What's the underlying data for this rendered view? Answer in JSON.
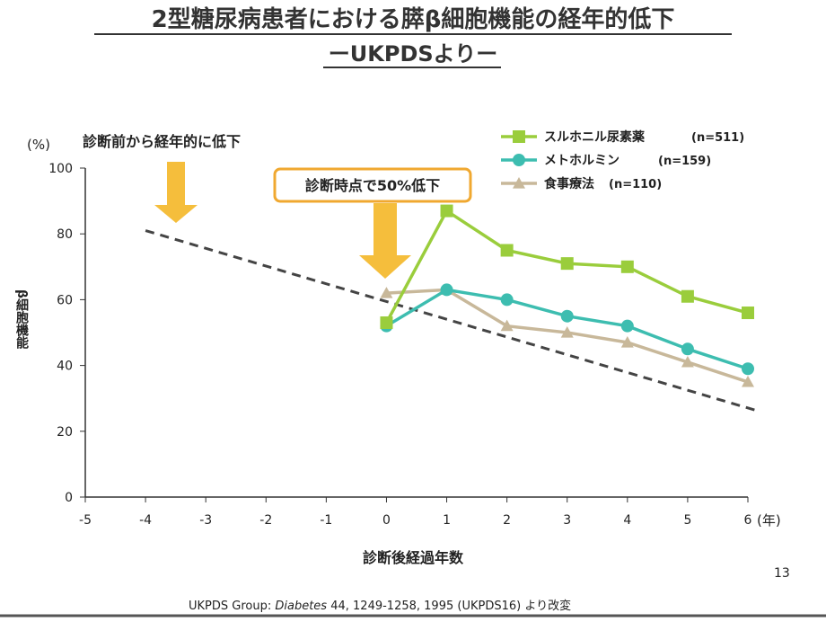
{
  "slide_number": "13",
  "footer": {
    "prefix": "UKPDS Group: ",
    "journal": "Diabetes",
    "suffix": " 44, 1249-1258, 1995 (UKPDS16) より改変"
  },
  "annotations": {
    "pre_diagnosis": "診断前から経年的に低下",
    "at_diagnosis": "診断時点で50%低下"
  },
  "colors": {
    "sulfonylurea": "#9acd3c",
    "metformin": "#3dbdb0",
    "diet": "#c8b89a",
    "dashed": "#444444",
    "arrow": "#f5be3c",
    "callout_border": "#f0a830"
  },
  "chart_data": {
    "type": "line",
    "title": "2型糖尿病患者における膵β細胞機能の経年的低下",
    "subtitle": "ーUKPDSよりー",
    "xlabel": "診断後経過年数",
    "xunit": "(年)",
    "ylabel": "β細胞機能",
    "yunit": "(%)",
    "xlim": [
      -5,
      6
    ],
    "ylim": [
      0,
      100
    ],
    "xticks": [
      "-5",
      "-4",
      "-3",
      "-2",
      "-1",
      "0",
      "1",
      "2",
      "3",
      "4",
      "5",
      "6"
    ],
    "yticks": [
      "0",
      "20",
      "40",
      "60",
      "80",
      "100"
    ],
    "legend_position": "top-right",
    "x": [
      0,
      1,
      2,
      3,
      4,
      5,
      6
    ],
    "series": [
      {
        "name": "スルホニル尿素薬",
        "n": "(n=511)",
        "marker": "square",
        "values": [
          53,
          87,
          75,
          71,
          70,
          61,
          56
        ]
      },
      {
        "name": "メトホルミン",
        "n": "(n=159)",
        "marker": "circle",
        "values": [
          52,
          63,
          60,
          55,
          52,
          45,
          39
        ]
      },
      {
        "name": "食事療法",
        "n": "(n=110)",
        "marker": "triangle",
        "values": [
          62,
          63,
          52,
          50,
          47,
          41,
          35
        ]
      }
    ],
    "trend_line": {
      "style": "dashed",
      "x": [
        -4,
        6.2
      ],
      "y": [
        81,
        26
      ]
    }
  }
}
